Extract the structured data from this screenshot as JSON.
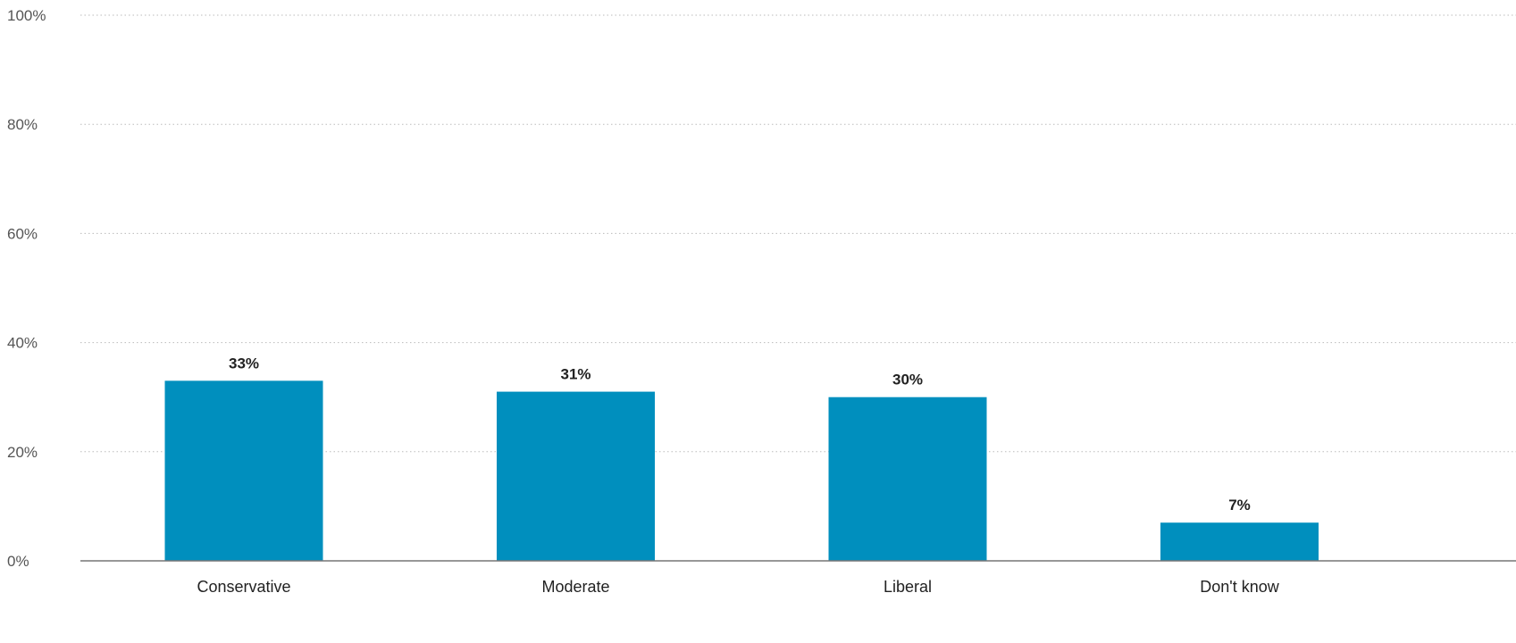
{
  "chart_data": {
    "type": "bar",
    "title": "",
    "xlabel": "",
    "ylabel": "",
    "categories": [
      "Conservative",
      "Moderate",
      "Liberal",
      "Don't know"
    ],
    "values": [
      33,
      31,
      30,
      7
    ],
    "data_labels": [
      "33%",
      "31%",
      "30%",
      "7%"
    ],
    "ylim": [
      0,
      100
    ],
    "y_ticks": [
      0,
      20,
      40,
      60,
      80,
      100
    ],
    "y_tick_labels": [
      "0%",
      "20%",
      "40%",
      "60%",
      "80%",
      "100%"
    ],
    "grid": true,
    "grid_style": "dotted",
    "legend": "none",
    "bar_color": "#008fbe",
    "axis_color": "#777777",
    "grid_color": "#bbbbbb"
  }
}
